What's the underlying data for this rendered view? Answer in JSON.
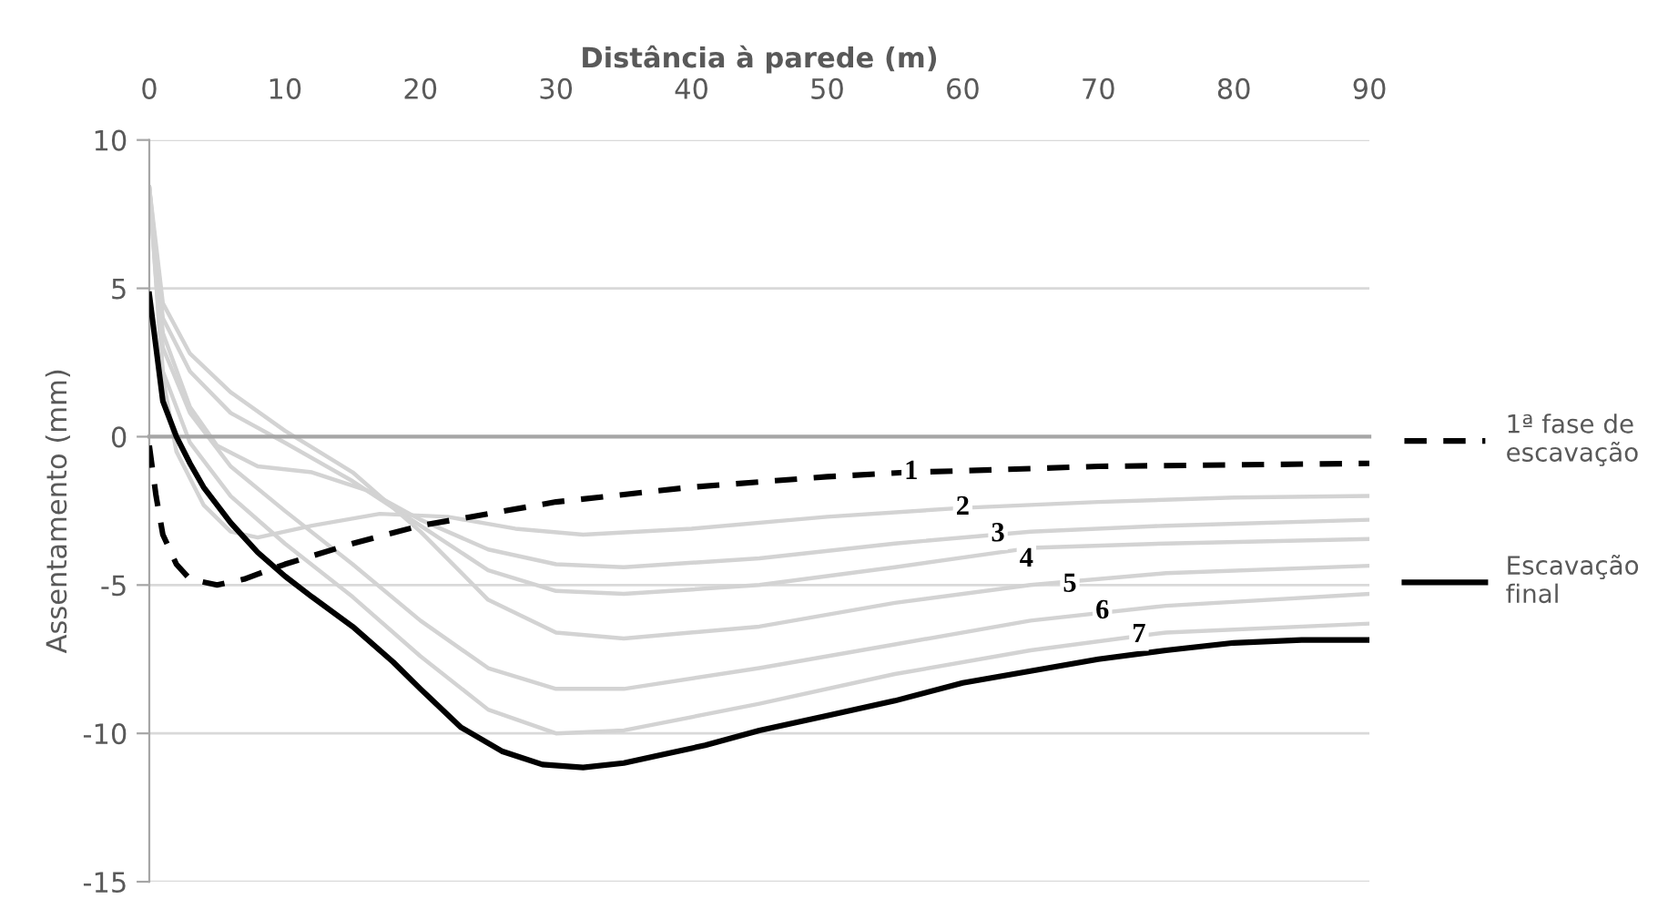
{
  "chart_data": {
    "type": "line",
    "xlabel": "Distância à parede (m)",
    "ylabel": "Assentamento (mm)",
    "xlim": [
      0,
      90
    ],
    "xticks": [
      0,
      10,
      20,
      30,
      40,
      50,
      60,
      70,
      80,
      90
    ],
    "ylim": [
      -15,
      10
    ],
    "yticks": [
      -15,
      -10,
      -5,
      0,
      5,
      10
    ],
    "grid": "y",
    "legend": "right",
    "marker": "none",
    "series": [
      {
        "name": "1ª fase de escavação",
        "color": "#000000",
        "line_style": "dashed",
        "x": [
          0,
          0.5,
          1,
          2,
          3,
          5,
          7,
          10,
          15,
          20,
          25,
          30,
          40,
          50,
          56,
          60,
          70,
          80,
          90
        ],
        "values": [
          -0.3,
          -2,
          -3.3,
          -4.3,
          -4.8,
          -5.0,
          -4.8,
          -4.3,
          -3.6,
          -3.0,
          -2.6,
          -2.2,
          -1.7,
          -1.35,
          -1.2,
          -1.15,
          -1.0,
          -0.95,
          -0.9
        ]
      },
      {
        "color": "#d3d3d3",
        "x": [
          0,
          1,
          2,
          4,
          6,
          8,
          12,
          17,
          22,
          27,
          32,
          40,
          50,
          60,
          70,
          80,
          90
        ],
        "values": [
          8.4,
          2,
          -0.5,
          -2.3,
          -3.2,
          -3.4,
          -3.0,
          -2.6,
          -2.7,
          -3.1,
          -3.3,
          -3.1,
          -2.7,
          -2.4,
          -2.2,
          -2.05,
          -2.0
        ]
      },
      {
        "color": "#d3d3d3",
        "x": [
          0,
          1,
          3,
          5,
          8,
          12,
          16,
          20,
          25,
          30,
          35,
          45,
          55,
          65,
          75,
          90
        ],
        "values": [
          8.4,
          3.5,
          1,
          -0.3,
          -1.0,
          -1.2,
          -1.8,
          -2.8,
          -3.8,
          -4.3,
          -4.4,
          -4.1,
          -3.6,
          -3.2,
          -3.0,
          -2.8
        ]
      },
      {
        "color": "#d3d3d3",
        "x": [
          0,
          1,
          3,
          6,
          10,
          15,
          20,
          25,
          30,
          35,
          45,
          55,
          65,
          75,
          90
        ],
        "values": [
          8.4,
          4,
          2.2,
          0.8,
          -0.2,
          -1.5,
          -3.0,
          -4.5,
          -5.2,
          -5.3,
          -5.0,
          -4.4,
          -3.75,
          -3.6,
          -3.45
        ]
      },
      {
        "color": "#d3d3d3",
        "x": [
          0,
          1,
          3,
          6,
          10,
          15,
          20,
          25,
          30,
          35,
          45,
          55,
          65,
          75,
          90
        ],
        "values": [
          8.4,
          4.5,
          2.8,
          1.5,
          0.2,
          -1.2,
          -3.2,
          -5.5,
          -6.6,
          -6.8,
          -6.4,
          -5.6,
          -5.0,
          -4.6,
          -4.35
        ]
      },
      {
        "color": "#d3d3d3",
        "x": [
          0,
          1,
          3,
          6,
          10,
          15,
          20,
          25,
          30,
          35,
          45,
          55,
          65,
          75,
          90
        ],
        "values": [
          8.4,
          3,
          0.8,
          -1.0,
          -2.5,
          -4.3,
          -6.2,
          -7.8,
          -8.5,
          -8.5,
          -7.8,
          -7.0,
          -6.2,
          -5.7,
          -5.3
        ]
      },
      {
        "color": "#d3d3d3",
        "x": [
          0,
          1,
          3,
          6,
          10,
          15,
          20,
          25,
          30,
          35,
          45,
          55,
          65,
          75,
          90
        ],
        "values": [
          8.4,
          2.2,
          -0.2,
          -2.0,
          -3.6,
          -5.4,
          -7.4,
          -9.2,
          -10.0,
          -9.9,
          -9.0,
          -8.0,
          -7.2,
          -6.6,
          -6.3
        ]
      },
      {
        "name": "Escavação final",
        "color": "#000000",
        "x": [
          0,
          1,
          2,
          3,
          4,
          6,
          8,
          10,
          12,
          15,
          18,
          20,
          23,
          26,
          29,
          32,
          35,
          38,
          41,
          45,
          50,
          55,
          60,
          65,
          70,
          75,
          80,
          85,
          90
        ],
        "values": [
          4.8,
          1.2,
          0,
          -0.9,
          -1.7,
          -2.9,
          -3.9,
          -4.7,
          -5.4,
          -6.4,
          -7.6,
          -8.5,
          -9.8,
          -10.6,
          -11.05,
          -11.15,
          -11.0,
          -10.7,
          -10.4,
          -9.9,
          -9.4,
          -8.9,
          -8.3,
          -7.9,
          -7.5,
          -7.2,
          -6.95,
          -6.85,
          -6.85
        ]
      }
    ],
    "annotations": [
      {
        "text": "1",
        "x": 56.2,
        "y": -1.2
      },
      {
        "text": "2",
        "x": 60,
        "y": -2.4
      },
      {
        "text": "3",
        "x": 62.6,
        "y": -3.3
      },
      {
        "text": "4",
        "x": 64.7,
        "y": -4.15
      },
      {
        "text": "5",
        "x": 67.9,
        "y": -5.0
      },
      {
        "text": "6",
        "x": 70.3,
        "y": -5.9
      },
      {
        "text": "7",
        "x": 73,
        "y": -6.7
      }
    ]
  }
}
